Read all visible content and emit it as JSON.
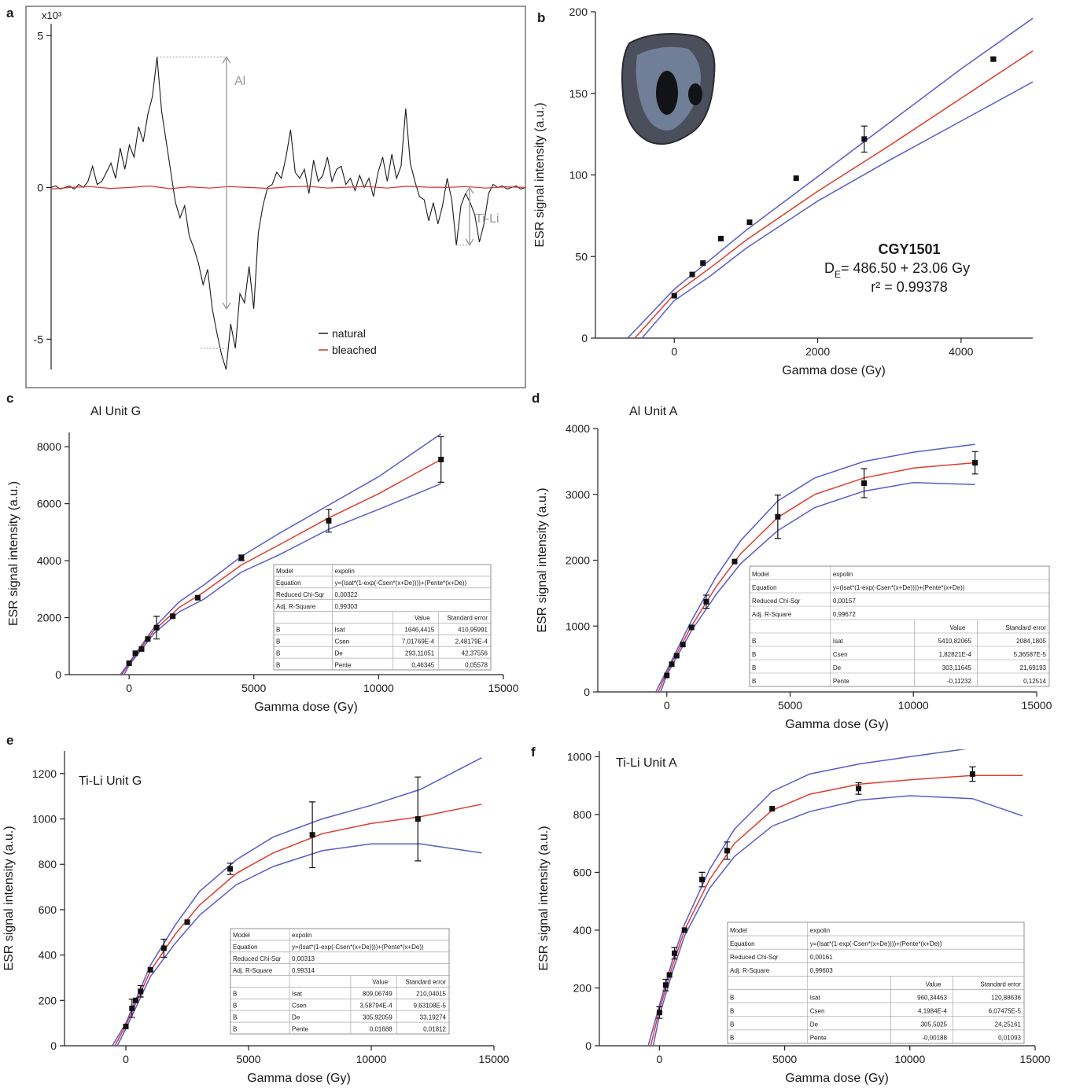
{
  "chart_data": [
    {
      "panel": "a",
      "type": "line",
      "y_multiplier": "x10³",
      "ylim": [
        -6,
        5.4
      ],
      "yticks": [
        -5,
        0,
        5
      ],
      "annotations": [
        "Al",
        "Ti-Li"
      ],
      "series": [
        {
          "name": "natural",
          "color": "#1a1a1a",
          "values": [
            0,
            0.05,
            -0.05,
            0,
            0.05,
            -0.05,
            0.1,
            0,
            0.2,
            0.7,
            0.1,
            0.2,
            0.5,
            0.8,
            0.3,
            1.3,
            0.6,
            1.4,
            1.0,
            2.0,
            1.5,
            2.4,
            3.0,
            4.3,
            2.5,
            1.5,
            0.5,
            -0.5,
            -1.0,
            -0.6,
            -1.6,
            -2.0,
            -2.5,
            -3.2,
            -2.7,
            -4.0,
            -4.8,
            -5.5,
            -6.0,
            -4.5,
            -5.3,
            -3.5,
            -3.8,
            -2.6,
            -4.0,
            -1.5,
            -0.6,
            0,
            0.1,
            0.5,
            0.3,
            1.0,
            1.9,
            0.5,
            0.3,
            0.6,
            -0.2,
            0.9,
            0.2,
            0.4,
            1.0,
            0.2,
            0.6,
            0.7,
            0.1,
            0.3,
            -0.1,
            0.4,
            0,
            0.3,
            -0.3,
            0.5,
            1.0,
            0.2,
            1.1,
            0.3,
            0.7,
            2.6,
            0.8,
            0.2,
            -0.3,
            -0.4,
            -1.1,
            -0.5,
            -1.2,
            -0.6,
            0.3,
            -0.4,
            -1.9,
            -0.6,
            -0.2,
            -0.5,
            -0.9,
            -1.8,
            -1.2,
            -0.2,
            0.1,
            0,
            0.05,
            -0.05,
            0,
            0.05,
            -0.05,
            0
          ]
        },
        {
          "name": "bleached",
          "color": "#d9302c",
          "values": [
            -0.05,
            0,
            0.03,
            -0.03,
            0,
            0.05,
            -0.04,
            0.02,
            -0.02,
            0.03,
            0,
            -0.03,
            0.02,
            0.04,
            -0.02,
            0.01,
            0.03,
            -0.02,
            0.04,
            0.01,
            0,
            0.03,
            -0.02,
            0.02,
            0
          ]
        }
      ]
    },
    {
      "panel": "b",
      "type": "scatter",
      "xlabel": "Gamma dose (Gy)",
      "ylabel": "ESR signal intensity (a.u.)",
      "xlim": [
        -1100,
        5000
      ],
      "ylim": [
        0,
        200
      ],
      "xticks": [
        0,
        2000,
        4000
      ],
      "yticks": [
        0,
        50,
        100,
        150,
        200
      ],
      "annotation": {
        "sample": "CGY1501",
        "de": [
          "D",
          "E",
          "= 486.50 + 23.06 Gy"
        ],
        "r2": "r² = 0.99378"
      },
      "series": [
        {
          "color": "#111111",
          "mode": "markers",
          "x": [
            0,
            250,
            400,
            650,
            1050,
            1700,
            2650,
            4450
          ],
          "values": [
            26,
            39,
            46,
            61,
            71,
            98,
            122,
            171
          ],
          "errors": [
            null,
            null,
            null,
            null,
            null,
            null,
            8,
            1
          ]
        },
        {
          "color": "#e03c2c",
          "mode": "line",
          "x": [
            -550,
            0,
            500,
            1000,
            2000,
            3000,
            4000,
            5000
          ],
          "values": [
            0,
            27,
            43,
            60,
            90,
            118,
            147,
            176
          ]
        },
        {
          "color": "#5b5bc8",
          "mode": "line",
          "x": [
            -650,
            0,
            500,
            1000,
            2000,
            3000,
            4000,
            5000
          ],
          "values": [
            0,
            30,
            48,
            66,
            99,
            132,
            165,
            196
          ]
        },
        {
          "color": "#5b5bc8",
          "mode": "line",
          "x": [
            -450,
            0,
            500,
            1000,
            2000,
            3000,
            4000,
            5000
          ],
          "values": [
            0,
            23,
            38,
            55,
            84,
            109,
            133,
            157
          ]
        }
      ]
    },
    {
      "panel": "c",
      "type": "scatter",
      "title": "Al Unit G",
      "xlabel": "Gamma dose (Gy)",
      "ylabel": "ESR signal intensity (a.u.)",
      "xlim": [
        -2400,
        15000
      ],
      "ylim": [
        0,
        8500
      ],
      "xticks": [
        0,
        5000,
        10000,
        15000
      ],
      "yticks": [
        0,
        2000,
        4000,
        6000,
        8000
      ],
      "table": {
        "rows": [
          [
            "Model",
            "expolin"
          ],
          [
            "Equation",
            "y=(Isat*(1-exp(-Csen*(x+De))))+(Pente*(x+De))"
          ],
          [
            "Reduced Chi-Sqr",
            "0,00322"
          ],
          [
            "Adj. R-Square",
            "0,99303"
          ]
        ],
        "param_header": [
          "Value",
          "Standard error"
        ],
        "params": [
          [
            "B",
            "Isat",
            "1646,4415",
            "410,95991"
          ],
          [
            "B",
            "Csen",
            "7,01769E-4",
            "2,48179E-4"
          ],
          [
            "B",
            "De",
            "293,11051",
            "42,37556"
          ],
          [
            "B",
            "Pente",
            "0,46345",
            "0,05578"
          ]
        ]
      },
      "series": [
        {
          "color": "#111111",
          "mode": "markers",
          "x": [
            0,
            250,
            500,
            750,
            1100,
            1750,
            2750,
            4500,
            8000,
            12500
          ],
          "values": [
            400,
            750,
            900,
            1250,
            1650,
            2050,
            2700,
            4100,
            5400,
            7550
          ],
          "errors": [
            null,
            null,
            null,
            null,
            400,
            null,
            null,
            100,
            400,
            800
          ]
        },
        {
          "color": "#e03c2c",
          "mode": "line",
          "x": [
            -300,
            0,
            1000,
            2000,
            3000,
            4500,
            6000,
            8000,
            10000,
            12500
          ],
          "values": [
            0,
            380,
            1550,
            2350,
            2900,
            3850,
            4550,
            5500,
            6350,
            7550
          ]
        },
        {
          "color": "#5b5bc8",
          "mode": "line",
          "x": [
            -350,
            0,
            1000,
            2000,
            3000,
            4500,
            6000,
            8000,
            10000,
            12500
          ],
          "values": [
            0,
            420,
            1650,
            2550,
            3150,
            4150,
            4950,
            5950,
            6950,
            8450
          ]
        },
        {
          "color": "#5b5bc8",
          "mode": "line",
          "x": [
            -200,
            0,
            1000,
            2000,
            3000,
            4500,
            6000,
            8000,
            10000,
            12500
          ],
          "values": [
            0,
            330,
            1450,
            2200,
            2650,
            3600,
            4200,
            5100,
            5800,
            6700
          ]
        }
      ]
    },
    {
      "panel": "d",
      "type": "scatter",
      "title": "Al Unit A",
      "xlabel": "Gamma dose (Gy)",
      "ylabel": "ESR signal intensity (a.u.)",
      "xlim": [
        -2800,
        15000
      ],
      "ylim": [
        0,
        4000
      ],
      "xticks": [
        0,
        5000,
        10000,
        15000
      ],
      "yticks": [
        0,
        1000,
        2000,
        3000,
        4000
      ],
      "table": {
        "rows": [
          [
            "Model",
            "expolin"
          ],
          [
            "Equation",
            "y=(Isat*(1-exp(-Csen*(x+De))))+(Pente*(x+De))"
          ],
          [
            "Reduced Chi-Sqr",
            "0,00157"
          ],
          [
            "Adj. R-Square",
            "0,99672"
          ]
        ],
        "param_header": [
          "Value",
          "Standard error"
        ],
        "params": [
          [
            "B",
            "Isat",
            "5410,82065",
            "2084,1805"
          ],
          [
            "B",
            "Csen",
            "1,82821E-4",
            "5,36587E-5"
          ],
          [
            "B",
            "De",
            "303,11645",
            "21,69193"
          ],
          [
            "B",
            "Pente",
            "-0,11232",
            "0,12514"
          ]
        ]
      },
      "series": [
        {
          "color": "#111111",
          "mode": "markers",
          "x": [
            0,
            200,
            400,
            650,
            1000,
            1600,
            2750,
            4500,
            8000,
            12500
          ],
          "values": [
            250,
            420,
            550,
            720,
            980,
            1370,
            1980,
            2660,
            3170,
            3480
          ],
          "errors": [
            null,
            null,
            null,
            null,
            null,
            100,
            null,
            330,
            220,
            170
          ]
        },
        {
          "color": "#e03c2c",
          "mode": "line",
          "x": [
            -350,
            0,
            1000,
            2000,
            3000,
            4500,
            6000,
            8000,
            10000,
            12500
          ],
          "values": [
            0,
            300,
            1000,
            1600,
            2100,
            2650,
            3000,
            3250,
            3400,
            3480
          ]
        },
        {
          "color": "#5b5bc8",
          "mode": "line",
          "x": [
            -450,
            0,
            1000,
            2000,
            3000,
            4500,
            6000,
            8000,
            10000,
            12500
          ],
          "values": [
            0,
            330,
            1080,
            1750,
            2300,
            2900,
            3250,
            3500,
            3640,
            3760
          ]
        },
        {
          "color": "#5b5bc8",
          "mode": "line",
          "x": [
            -250,
            0,
            1000,
            2000,
            3000,
            4500,
            6000,
            8000,
            10000,
            12500
          ],
          "values": [
            0,
            260,
            930,
            1480,
            1950,
            2450,
            2800,
            3050,
            3180,
            3150
          ]
        }
      ]
    },
    {
      "panel": "e",
      "type": "scatter",
      "title": "Ti-Li Unit G",
      "xlabel": "Gamma dose (Gy)",
      "ylabel": "ESR signal intensity (a.u.)",
      "xlim": [
        -2500,
        15000
      ],
      "ylim": [
        0,
        1300
      ],
      "xticks": [
        0,
        5000,
        10000,
        15000
      ],
      "yticks": [
        0,
        200,
        400,
        600,
        800,
        1000,
        1200
      ],
      "table": {
        "rows": [
          [
            "Model",
            "expolin"
          ],
          [
            "Equation",
            "y=(Isat*(1-exp(-Csen*(x+De))))+(Pente*(x+De))"
          ],
          [
            "Reduced Chi-Sqr",
            "0,00313"
          ],
          [
            "Adj. R-Square",
            "0,99314"
          ]
        ],
        "param_header": [
          "Value",
          "Standard error"
        ],
        "params": [
          [
            "B",
            "Isat",
            "809,06749",
            "210,04015"
          ],
          [
            "B",
            "Csen",
            "3,58794E-4",
            "9,63108E-5"
          ],
          [
            "B",
            "De",
            "305,92059",
            "33,19274"
          ],
          [
            "B",
            "Pente",
            "0,01688",
            "0,01812"
          ]
        ]
      },
      "series": [
        {
          "color": "#111111",
          "mode": "markers",
          "x": [
            0,
            250,
            400,
            600,
            1000,
            1550,
            2500,
            4250,
            7600,
            11900
          ],
          "values": [
            85,
            165,
            200,
            240,
            335,
            430,
            545,
            780,
            930,
            1000
          ],
          "errors": [
            null,
            40,
            null,
            25,
            null,
            40,
            null,
            25,
            145,
            185
          ]
        },
        {
          "color": "#e03c2c",
          "mode": "line",
          "x": [
            -450,
            0,
            1000,
            2000,
            3000,
            4500,
            6000,
            8000,
            10000,
            12000,
            14500
          ],
          "values": [
            0,
            90,
            330,
            490,
            620,
            760,
            850,
            935,
            980,
            1010,
            1065
          ]
        },
        {
          "color": "#5b5bc8",
          "mode": "line",
          "x": [
            -550,
            0,
            1000,
            2000,
            3000,
            4500,
            6000,
            8000,
            10000,
            12000,
            14500
          ],
          "values": [
            0,
            100,
            355,
            530,
            680,
            820,
            920,
            1000,
            1060,
            1130,
            1270
          ]
        },
        {
          "color": "#5b5bc8",
          "mode": "line",
          "x": [
            -350,
            0,
            1000,
            2000,
            3000,
            4500,
            6000,
            8000,
            10000,
            12000,
            14500
          ],
          "values": [
            0,
            75,
            305,
            450,
            575,
            710,
            790,
            860,
            890,
            890,
            850
          ]
        }
      ]
    },
    {
      "panel": "f",
      "type": "scatter",
      "title": "Ti-Li Unit A",
      "xlabel": "Gamma dose (Gy)",
      "ylabel": "ESR signal intensity (a.u.)",
      "xlim": [
        -2400,
        15000
      ],
      "ylim": [
        0,
        1020
      ],
      "xticks": [
        0,
        5000,
        10000,
        15000
      ],
      "yticks": [
        0,
        200,
        400,
        600,
        800,
        1000
      ],
      "table": {
        "rows": [
          [
            "Model",
            "expolin"
          ],
          [
            "Equation",
            "y=(Isat*(1-exp(-Csen*(x+De))))+(Pente*(x+De))"
          ],
          [
            "Reduced Chi-Sqr",
            "0,00161"
          ],
          [
            "Adj. R-Square",
            "0,99603"
          ]
        ],
        "param_header": [
          "Value",
          "Standard error"
        ],
        "params": [
          [
            "B",
            "Isat",
            "960,34463",
            "120,88636"
          ],
          [
            "B",
            "Csen",
            "4,1984E-4",
            "6,07475E-5"
          ],
          [
            "B",
            "De",
            "305,5025",
            "24,25161"
          ],
          [
            "B",
            "Pente",
            "-0,00188",
            "0,01093"
          ]
        ]
      },
      "series": [
        {
          "color": "#111111",
          "mode": "markers",
          "x": [
            0,
            250,
            400,
            600,
            1000,
            1700,
            2700,
            4500,
            7950,
            12500
          ],
          "values": [
            115,
            210,
            245,
            320,
            400,
            575,
            675,
            820,
            890,
            940
          ],
          "errors": [
            20,
            20,
            null,
            20,
            null,
            25,
            30,
            null,
            20,
            25
          ]
        },
        {
          "color": "#e03c2c",
          "mode": "line",
          "x": [
            -350,
            0,
            500,
            1000,
            2000,
            3000,
            4500,
            6000,
            8000,
            10000,
            12500,
            14500
          ],
          "values": [
            0,
            125,
            270,
            400,
            575,
            700,
            815,
            870,
            905,
            920,
            935,
            935
          ]
        },
        {
          "color": "#5b5bc8",
          "mode": "line",
          "x": [
            -450,
            0,
            500,
            1000,
            2000,
            3000,
            4500,
            6000,
            8000,
            10000,
            12500,
            14500
          ],
          "values": [
            0,
            140,
            290,
            420,
            610,
            750,
            880,
            940,
            975,
            1000,
            1030,
            1045
          ]
        },
        {
          "color": "#5b5bc8",
          "mode": "line",
          "x": [
            -250,
            0,
            500,
            1000,
            2000,
            3000,
            4500,
            6000,
            8000,
            10000,
            12500,
            14500
          ],
          "values": [
            0,
            105,
            250,
            380,
            545,
            655,
            760,
            810,
            850,
            865,
            855,
            795
          ]
        }
      ]
    }
  ]
}
